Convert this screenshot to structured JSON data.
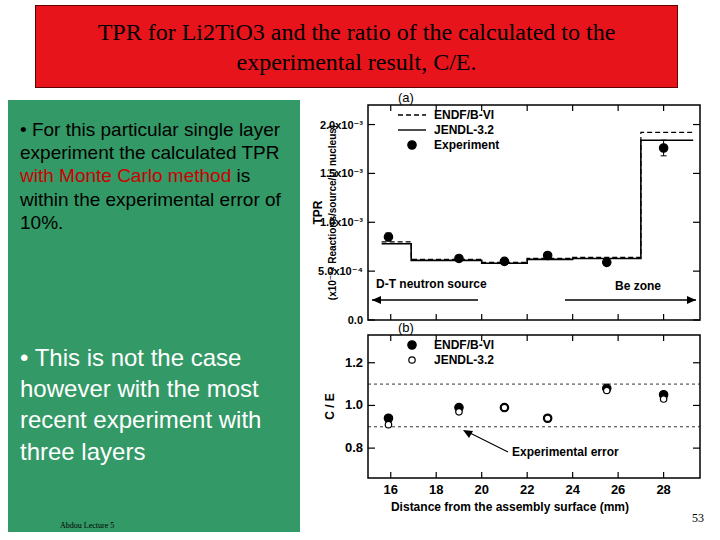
{
  "slide": {
    "title": "TPR for Li2TiO3 and the ratio of the calculated to the experimental result,  C/E.",
    "bullets": [
      {
        "parts": [
          {
            "text": "• For this particular single layer experiment the calculated TPR ",
            "color": "#000000"
          },
          {
            "text": "with Monte Carlo method",
            "color": "#cc0000"
          },
          {
            "text": " is within the experimental error of 10%.",
            "color": "#000000"
          }
        ]
      },
      {
        "text": "• This is not the case however with the most recent experiment with three layers",
        "color": "#ffffff"
      }
    ],
    "footer": "Abdou Lecture 5",
    "page": 53
  },
  "chart_data": [
    {
      "type": "line",
      "title": "(a)",
      "ylabel": "TPR",
      "ylabel_units": "(x10⁻²⁴ Reactions/source/Li nucleus)",
      "xlim": [
        15,
        29.6
      ],
      "ylim": [
        0,
        0.0022
      ],
      "xticks": [
        16,
        18,
        20,
        22,
        24,
        26,
        28
      ],
      "yticks": [
        {
          "value": 0,
          "label": "0.0"
        },
        {
          "value": 0.0005,
          "label": "5.0x10⁻⁴"
        },
        {
          "value": 0.001,
          "label": "1.0x10⁻³"
        },
        {
          "value": 0.0015,
          "label": "1.5x10⁻³"
        },
        {
          "value": 0.002,
          "label": "2.0x10⁻³"
        }
      ],
      "tick_labels": "y",
      "legend": "upper left",
      "series": [
        {
          "name": "ENDF/B-VI",
          "color": "#000000",
          "line_style": "dashed",
          "x": [
            15.6,
            16.9,
            16.9,
            20.0,
            20.0,
            22.0,
            22.0,
            24.0,
            24.0,
            27.0,
            27.0,
            29.3
          ],
          "values": [
            0.0008,
            0.0008,
            0.00062,
            0.00062,
            0.00059,
            0.00059,
            0.00063,
            0.00063,
            0.00064,
            0.00064,
            0.00192,
            0.00192
          ]
        },
        {
          "name": "JENDL-3.2",
          "color": "#000000",
          "line_style": "solid",
          "x": [
            15.6,
            16.9,
            16.9,
            20.0,
            20.0,
            22.0,
            22.0,
            24.0,
            24.0,
            27.0,
            27.0,
            29.3
          ],
          "values": [
            0.00078,
            0.00078,
            0.00061,
            0.00061,
            0.00058,
            0.00058,
            0.00062,
            0.00062,
            0.00063,
            0.00063,
            0.00184,
            0.00184
          ]
        },
        {
          "name": "Experiment",
          "type": "scatter",
          "marker": "filled_circle",
          "color": "#000000",
          "x": [
            15.9,
            19.0,
            21.0,
            22.9,
            25.5,
            28.0
          ],
          "values": [
            0.00085,
            0.00063,
            0.0006,
            0.00066,
            0.00059,
            0.00176
          ],
          "errors": [
            4e-05,
            3e-05,
            3e-05,
            3e-05,
            3e-05,
            8e-05
          ]
        }
      ],
      "annotations": [
        "D-T neutron source",
        "Be zone"
      ]
    },
    {
      "type": "scatter",
      "title": "(b)",
      "ylabel": "C / E",
      "xlabel": "Distance from the assembly surface   (mm)",
      "xlim": [
        15,
        29.6
      ],
      "ylim": [
        0.66,
        1.33
      ],
      "xticks": [
        16,
        18,
        20,
        22,
        24,
        26,
        28
      ],
      "yticks": [
        0.8,
        {
          "value": 1,
          "label": "1.0"
        },
        1.2
      ],
      "legend": "upper left",
      "reference_lines": [
        0.9,
        1.1
      ],
      "series": [
        {
          "name": "ENDF/B-VI",
          "marker": "filled_circle",
          "color": "#000000",
          "x": [
            15.9,
            19.0,
            21.0,
            22.9,
            25.5,
            28.0
          ],
          "values": [
            0.94,
            0.99,
            0.99,
            0.94,
            1.08,
            1.05
          ]
        },
        {
          "name": "JENDL-3.2",
          "marker": "open_circle",
          "color": "#000000",
          "x": [
            15.9,
            19.0,
            21.0,
            22.9,
            25.5,
            28.0
          ],
          "values": [
            0.91,
            0.97,
            0.99,
            0.94,
            1.07,
            1.03
          ]
        }
      ],
      "annotations": [
        "Experimental error"
      ]
    }
  ]
}
